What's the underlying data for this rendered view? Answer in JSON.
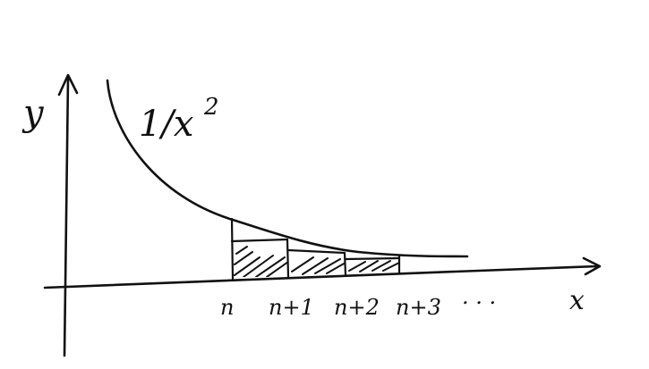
{
  "diagram": {
    "y_axis_label": "y",
    "x_axis_label": "x",
    "function_label": "1/x",
    "function_exponent": "2",
    "tick_labels": [
      "n",
      "n+1",
      "n+2",
      "n+3"
    ],
    "continuation": ". . .",
    "shaded_rectangles": 3
  }
}
